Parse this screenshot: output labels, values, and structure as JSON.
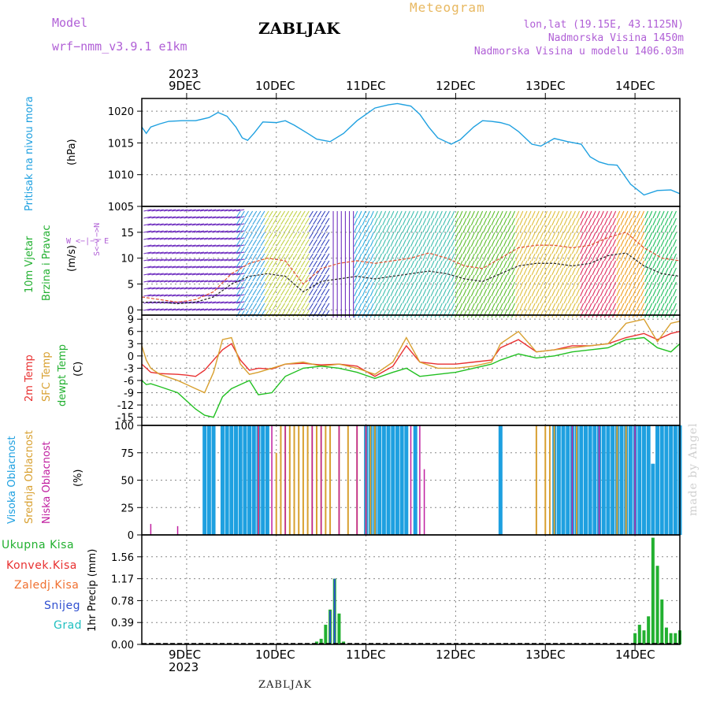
{
  "header": {
    "model_label": "Model",
    "model_name": "wrf−nmm_v3.9.1  e1km",
    "station": "ZABLJAK",
    "product": "Meteogram",
    "coords": "lon,lat (19.15E, 43.1125N)",
    "elevation": "Nadmorska Visina 1450m",
    "model_elevation": "Nadmorska Visina u modelu 1406.03m",
    "footer_station": "ZABLJAK",
    "credit": "made by Angel"
  },
  "time_axis": {
    "year": "2023",
    "dates": [
      "9DEC",
      "10DEC",
      "11DEC",
      "12DEC",
      "13DEC",
      "14DEC"
    ]
  },
  "colors": {
    "pressure": "#1ea0e0",
    "temp2m": "#e83030",
    "sfc_temp": "#d8a030",
    "dewpoint": "#22c022",
    "high_cloud": "#1ea0e0",
    "mid_cloud": "#d8a030",
    "low_cloud": "#c020a0",
    "total_precip": "#22b030",
    "snow": "#3050d0",
    "wind_label": "#22b030",
    "grad": "#20c0c0"
  },
  "panels": {
    "pressure": {
      "label": "Pritisak na nivou mora",
      "unit": "(hPa)"
    },
    "wind": {
      "label1": "10m Vjetar",
      "label2": "Brzina i Pravac",
      "unit": "(m/s)",
      "compass": "W <−|−> E",
      "compass2": "S<−|−>N"
    },
    "temp": {
      "label_2m": "2m Temp",
      "label_sfc": "SFC Temp",
      "label_dew": "dewpt Temp",
      "unit": "(C)"
    },
    "cloud": {
      "label_high": "Visoka Oblacnost",
      "label_mid": "Srednja Oblacnost",
      "label_low": "Niska Oblacnost",
      "unit": "(%)"
    },
    "precip": {
      "legend": [
        "Ukupna Kisa",
        "Konvek.Kisa",
        "Zaledj.Kisa",
        "Snijeg",
        "Grad"
      ],
      "unit": "1hr Precip (mm)"
    }
  },
  "chart_data": [
    {
      "type": "line",
      "panel": "pressure",
      "ylabel": "Pritisak na nivou mora (hPa)",
      "ylim": [
        1005,
        1022
      ],
      "yticks": [
        1005,
        1010,
        1015,
        1020
      ],
      "x_days": [
        0,
        0.05,
        0.1,
        0.2,
        0.3,
        0.45,
        0.6,
        0.75,
        0.85,
        0.95,
        1.05,
        1.12,
        1.18,
        1.25,
        1.35,
        1.5,
        1.6,
        1.7,
        1.85,
        1.95,
        2.1,
        2.25,
        2.4,
        2.5,
        2.6,
        2.75,
        2.85,
        3.0,
        3.1,
        3.2,
        3.3,
        3.45,
        3.55,
        3.7,
        3.8,
        3.9,
        4.0,
        4.1,
        4.2,
        4.35,
        4.45,
        4.6,
        4.75,
        4.9,
        5.0,
        5.1,
        5.2,
        5.3,
        5.45,
        5.6,
        5.75,
        5.9,
        6.0
      ],
      "values": [
        1017.5,
        1016.5,
        1017.5,
        1018,
        1018.4,
        1018.5,
        1018.5,
        1019,
        1019.8,
        1019.2,
        1017.5,
        1015.8,
        1015.4,
        1016.5,
        1018.3,
        1018.2,
        1018.5,
        1017.8,
        1016.5,
        1015.6,
        1015.2,
        1016.5,
        1018.5,
        1019.5,
        1020.5,
        1021,
        1021.2,
        1020.8,
        1019.5,
        1017.5,
        1015.8,
        1014.8,
        1015.5,
        1017.5,
        1018.5,
        1018.4,
        1018.2,
        1017.8,
        1016.8,
        1014.8,
        1014.5,
        1015.7,
        1015.2,
        1014.8,
        1012.8,
        1012.0,
        1011.6,
        1011.5,
        1008.5,
        1006.8,
        1007.5,
        1007.6,
        1007.0
      ]
    },
    {
      "type": "line",
      "panel": "wind",
      "ylabel": "10m Vjetar Brzina i Pravac (m/s)",
      "ylim": [
        -1,
        20
      ],
      "yticks": [
        0,
        5,
        10,
        15
      ],
      "x_days": [
        0,
        0.2,
        0.4,
        0.6,
        0.8,
        1.0,
        1.2,
        1.4,
        1.6,
        1.8,
        2.0,
        2.2,
        2.4,
        2.6,
        2.8,
        3.0,
        3.2,
        3.4,
        3.6,
        3.8,
        4.0,
        4.2,
        4.4,
        4.6,
        4.8,
        5.0,
        5.2,
        5.4,
        5.6,
        5.8,
        6.0
      ],
      "values": [
        1.5,
        1.5,
        1.2,
        1.5,
        2.5,
        5.0,
        6.5,
        7.0,
        6.5,
        3.5,
        5.5,
        6.0,
        6.5,
        6.0,
        6.5,
        7.0,
        7.5,
        7.0,
        6.0,
        5.5,
        7.0,
        8.5,
        9.0,
        9.0,
        8.5,
        9.0,
        10.5,
        11.0,
        8.5,
        7.0,
        6.5
      ],
      "gust": [
        2.5,
        2.0,
        1.5,
        2.0,
        3.5,
        7.0,
        9.0,
        10.0,
        9.5,
        5.0,
        8.0,
        9.0,
        9.5,
        9.0,
        9.5,
        10.0,
        11.0,
        10.0,
        8.5,
        8.0,
        10.0,
        12.0,
        12.5,
        12.5,
        12.0,
        12.5,
        14.0,
        15.0,
        12.0,
        10.0,
        9.5
      ]
    },
    {
      "type": "line",
      "panel": "temp",
      "ylabel": "2m Temp / SFC Temp / dewpt Temp (C)",
      "ylim": [
        -17,
        10
      ],
      "yticks": [
        -15,
        -12,
        -9,
        -6,
        -3,
        0,
        3,
        6,
        9
      ],
      "x_days": [
        0,
        0.05,
        0.1,
        0.2,
        0.4,
        0.5,
        0.6,
        0.7,
        0.8,
        0.9,
        1.0,
        1.1,
        1.2,
        1.3,
        1.45,
        1.6,
        1.8,
        2.0,
        2.2,
        2.4,
        2.6,
        2.8,
        2.95,
        3.1,
        3.3,
        3.5,
        3.7,
        3.9,
        4.0,
        4.2,
        4.4,
        4.6,
        4.8,
        5.0,
        5.2,
        5.4,
        5.6,
        5.75,
        5.9,
        6.0
      ],
      "temp2m": [
        -2,
        -3,
        -4,
        -4.3,
        -4.5,
        -4.7,
        -5,
        -3.5,
        -1,
        1.5,
        3,
        -1,
        -3.5,
        -3,
        -3.2,
        -2,
        -1.8,
        -2.2,
        -2.0,
        -2.5,
        -5,
        -2.5,
        2.5,
        -1.5,
        -2.0,
        -2.0,
        -1.5,
        -1.0,
        2.0,
        4.0,
        1.0,
        1.5,
        2.5,
        2.5,
        3.0,
        4.5,
        5.5,
        4.0,
        5.5,
        6.0
      ],
      "sfc_temp": [
        2.5,
        -1,
        -3,
        -4.5,
        -6,
        -7,
        -8,
        -9,
        -4,
        4,
        4.5,
        -2,
        -4.5,
        -4,
        -3,
        -2,
        -1.5,
        -2.5,
        -2.0,
        -3,
        -4.5,
        -1.5,
        4.5,
        -1.5,
        -3,
        -3.0,
        -2.5,
        -1.5,
        3,
        6,
        1,
        1.5,
        2,
        2.5,
        3,
        8,
        9,
        3.5,
        8.0,
        8.5
      ],
      "dewpoint": [
        -6,
        -7,
        -6.8,
        -7.5,
        -9,
        -11,
        -13,
        -14.5,
        -15,
        -10,
        -8,
        -7,
        -6,
        -9.5,
        -9.0,
        -5.0,
        -3.0,
        -2.5,
        -3.0,
        -4.0,
        -5.5,
        -4.0,
        -3.0,
        -5.0,
        -4.5,
        -4.0,
        -3.0,
        -2.0,
        -1.0,
        0.5,
        -0.5,
        0.0,
        1.0,
        1.5,
        2.0,
        4.0,
        4.5,
        2.0,
        1.0,
        3.0
      ]
    },
    {
      "type": "bar",
      "panel": "cloud",
      "ylabel": "Visoka / Srednja / Niska Oblacnost (%)",
      "ylim": [
        0,
        100
      ],
      "yticks": [
        0,
        25,
        50,
        75,
        100
      ],
      "series": [
        {
          "name": "Visoka Oblacnost",
          "x_days": [
            0.7,
            0.75,
            0.8,
            0.9,
            0.95,
            1.0,
            1.05,
            1.1,
            1.15,
            1.2,
            1.25,
            1.3,
            1.35,
            1.4,
            2.5,
            2.55,
            2.6,
            2.65,
            2.7,
            2.75,
            2.8,
            2.85,
            2.9,
            2.95,
            3.05,
            4.0,
            4.6,
            4.65,
            4.7,
            4.75,
            4.8,
            4.85,
            4.9,
            4.95,
            5.0,
            5.05,
            5.1,
            5.15,
            5.2,
            5.25,
            5.3,
            5.35,
            5.4,
            5.45,
            5.5,
            5.55,
            5.6,
            5.65,
            5.7,
            5.75,
            5.8,
            5.85,
            5.9,
            5.95,
            6.0
          ],
          "values": [
            100,
            100,
            100,
            100,
            100,
            100,
            100,
            100,
            100,
            100,
            100,
            100,
            100,
            100,
            100,
            100,
            100,
            100,
            100,
            100,
            100,
            100,
            100,
            100,
            100,
            100,
            100,
            100,
            100,
            100,
            100,
            100,
            100,
            100,
            100,
            100,
            100,
            100,
            100,
            100,
            100,
            100,
            100,
            100,
            100,
            100,
            100,
            100,
            65,
            100,
            100,
            100,
            100,
            100,
            100
          ]
        },
        {
          "name": "Srednja Oblacnost",
          "x_days": [
            1.3,
            1.5,
            1.55,
            1.6,
            1.65,
            1.7,
            1.75,
            1.8,
            1.85,
            1.9,
            1.95,
            2.0,
            2.05,
            2.1,
            2.2,
            2.3,
            2.4,
            2.5,
            2.55,
            2.6,
            4.4,
            4.5,
            4.55,
            4.6,
            4.85,
            5.3,
            5.4
          ],
          "values": [
            100,
            75,
            100,
            100,
            100,
            100,
            100,
            100,
            100,
            100,
            100,
            100,
            100,
            100,
            100,
            100,
            100,
            100,
            100,
            100,
            100,
            100,
            100,
            100,
            100,
            100,
            100
          ]
        },
        {
          "name": "Niska Oblacnost",
          "x_days": [
            0.1,
            0.4,
            1.3,
            1.45,
            1.6,
            1.9,
            2.0,
            2.2,
            2.4,
            2.5,
            3.0,
            3.1,
            3.15,
            4.8,
            5.1,
            5.5
          ],
          "values": [
            10,
            8,
            100,
            100,
            100,
            100,
            100,
            100,
            100,
            100,
            100,
            100,
            60,
            100,
            100,
            100
          ]
        }
      ]
    },
    {
      "type": "bar",
      "panel": "precip",
      "ylabel": "1hr Precip (mm)",
      "ylim": [
        0,
        1.95
      ],
      "yticks": [
        0,
        0.39,
        0.78,
        1.17,
        1.56
      ],
      "series": [
        {
          "name": "Ukupna Kisa",
          "x_days": [
            1.95,
            2.0,
            2.05,
            2.1,
            2.15,
            2.2,
            2.25,
            5.5,
            5.55,
            5.6,
            5.65,
            5.7,
            5.75,
            5.8,
            5.85,
            5.9,
            5.95,
            6.0
          ],
          "values": [
            0.05,
            0.1,
            0.35,
            0.62,
            1.17,
            0.55,
            0.05,
            0.2,
            0.35,
            0.25,
            0.5,
            1.9,
            1.4,
            0.8,
            0.3,
            0.2,
            0.2,
            0.25
          ]
        },
        {
          "name": "Snijeg",
          "x_days": [
            2.1,
            2.15
          ],
          "values": [
            0.6,
            1.17
          ]
        }
      ]
    }
  ]
}
